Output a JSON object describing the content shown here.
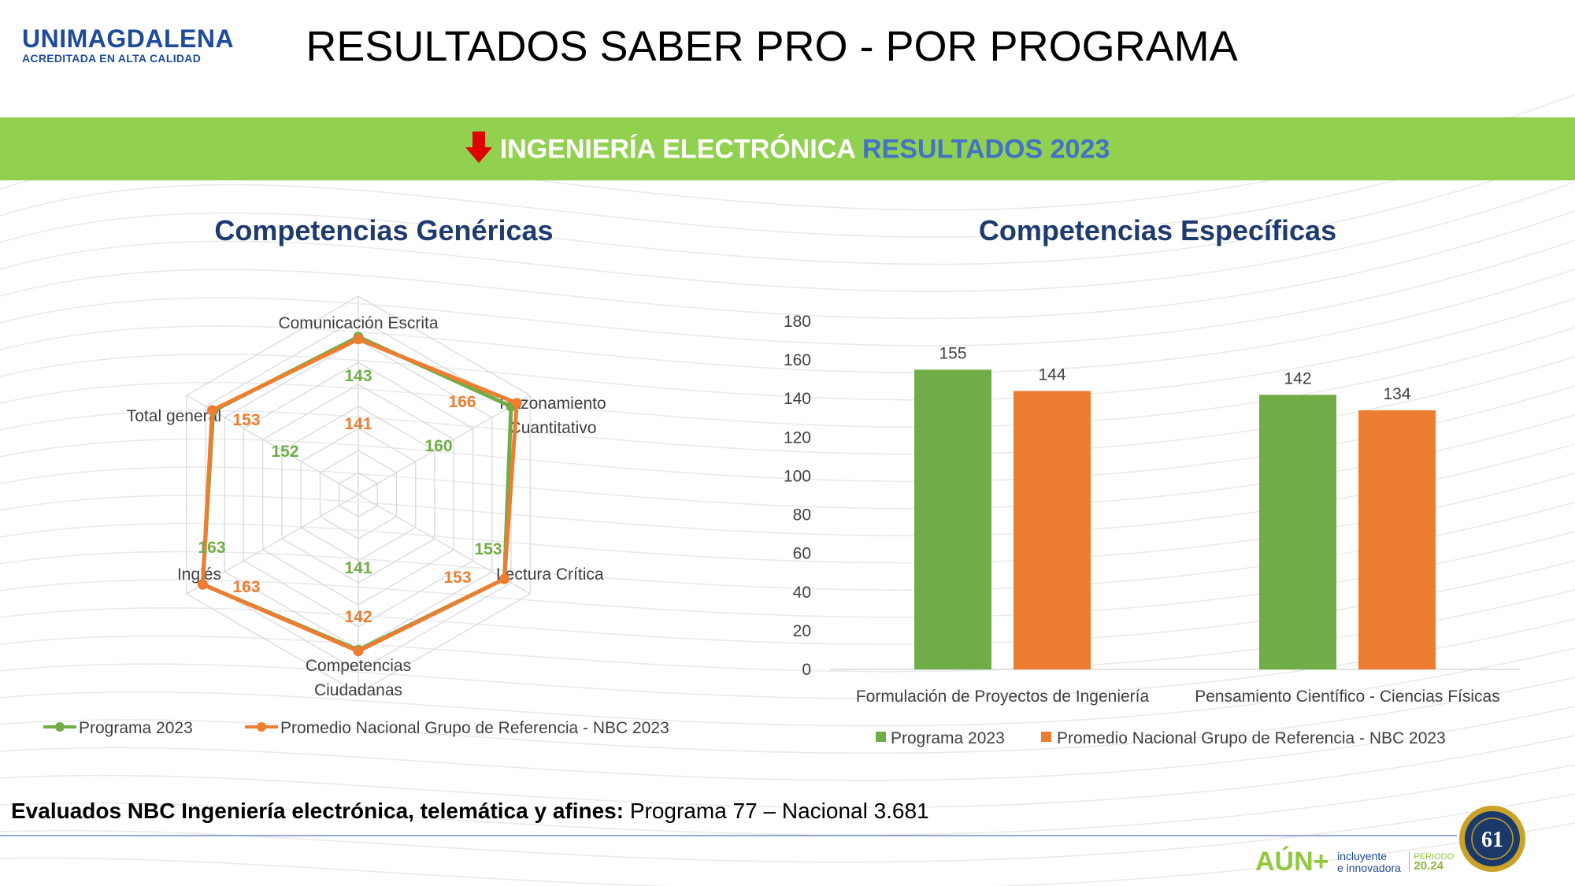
{
  "logo": {
    "name": "UNIMAGDALENA",
    "subtitle": "ACREDITADA EN ALTA CALIDAD"
  },
  "title": "RESULTADOS SABER PRO - POR PROGRAMA",
  "banner": {
    "program": "INGENIERÍA ELECTRÓNICA",
    "results": "RESULTADOS 2023",
    "arrow_icon": "down-arrow-icon"
  },
  "colors": {
    "programa": "#70ad47",
    "nacional": "#ed7d31",
    "banner": "#92d050",
    "title_blue": "#1f3a6e"
  },
  "chart_data": [
    {
      "type": "radar",
      "title": "Competencias Genéricas",
      "axes": [
        "Comunicación Escrita",
        "Razonamiento Cuantitativo",
        "Lectura Crítica",
        "Competencias Ciudadanas",
        "Inglés",
        "Total general"
      ],
      "series": [
        {
          "name": "Programa 2023",
          "values": [
            143,
            160,
            153,
            141,
            163,
            152
          ]
        },
        {
          "name": "Promedio Nacional Grupo de Referencia - NBC 2023",
          "values": [
            141,
            166,
            153,
            142,
            163,
            153
          ]
        }
      ],
      "rlim": [
        0,
        180
      ],
      "legend": "bottom"
    },
    {
      "type": "bar",
      "title": "Competencias Específicas",
      "categories": [
        "Formulación de Proyectos de Ingeniería",
        "Pensamiento Científico - Ciencias Físicas"
      ],
      "series": [
        {
          "name": "Programa 2023",
          "values": [
            155,
            142
          ]
        },
        {
          "name": "Promedio Nacional Grupo de Referencia - NBC 2023",
          "values": [
            144,
            134
          ]
        }
      ],
      "ylim": [
        0,
        180
      ],
      "yticks": [
        0,
        20,
        40,
        60,
        80,
        100,
        120,
        140,
        160,
        180
      ],
      "legend": "bottom"
    }
  ],
  "footer": {
    "label": "Evaluados NBC Ingeniería electrónica, telemática y afines:",
    "value": "Programa 77 – Nacional 3.681"
  },
  "branding": {
    "slogan_big": "AÚN+",
    "slogan_line1": "incluyente",
    "slogan_line2": "e innovadora",
    "period_label": "PERIODO",
    "period_value": "20.24",
    "seal_number": "61"
  }
}
